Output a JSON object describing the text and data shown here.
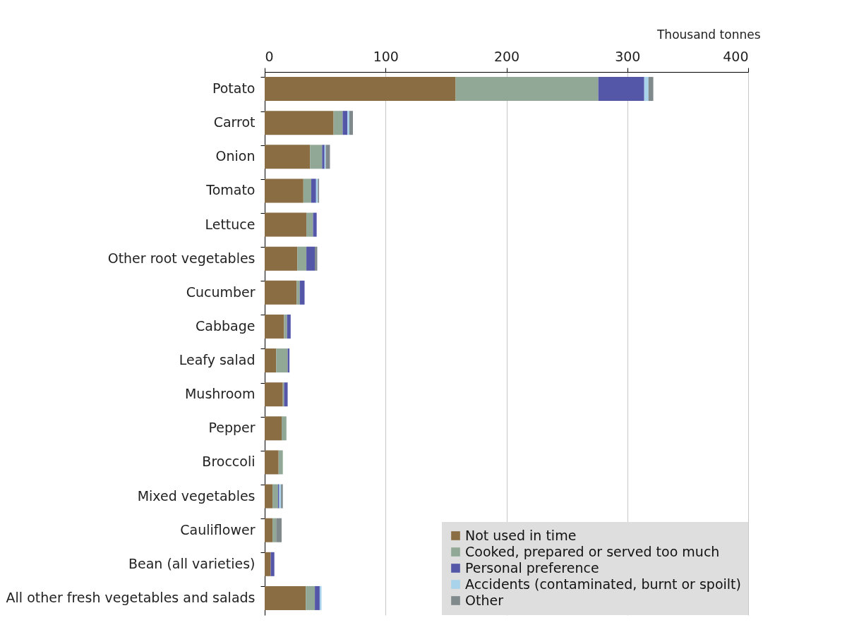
{
  "chart_data": {
    "type": "bar",
    "orientation": "horizontal",
    "stacked": true,
    "xlabel": "Thousand tonnes",
    "categories": [
      "Potato",
      "Carrot",
      "Onion",
      "Tomato",
      "Lettuce",
      "Other root vegetables",
      "Cucumber",
      "Cabbage",
      "Leafy salad",
      "Mushroom",
      "Pepper",
      "Broccoli",
      "Mixed vegetables",
      "Cauliflower",
      "Bean (all varieties)",
      "All other fresh vegetables and salads"
    ],
    "series": [
      {
        "name": "Not used in time",
        "color": "#8b6d44",
        "values": [
          158,
          57,
          37.5,
          32,
          34.5,
          27,
          26.5,
          16,
          9.5,
          15,
          14,
          11.5,
          6.5,
          6.5,
          5,
          34
        ]
      },
      {
        "name": "Cooked, prepared or served too much",
        "color": "#92a896",
        "values": [
          118,
          7.5,
          10,
          6.5,
          5.5,
          7.5,
          2.5,
          2.5,
          9.5,
          1,
          4,
          3.5,
          4.5,
          3,
          0,
          7.5
        ]
      },
      {
        "name": "Personal preference",
        "color": "#5457a8",
        "values": [
          38,
          4,
          2,
          4,
          3,
          7,
          4,
          3,
          1.5,
          3,
          0,
          0,
          1,
          0,
          3,
          4
        ]
      },
      {
        "name": "Accidents (contaminated, burnt or spoilt)",
        "color": "#a9d3ea",
        "values": [
          3.5,
          1.5,
          1,
          1.5,
          0,
          0,
          0,
          0,
          0,
          0,
          0,
          0,
          1.5,
          0,
          0,
          1.5
        ]
      },
      {
        "name": "Other",
        "color": "#808a8c",
        "values": [
          4,
          3,
          3.5,
          1,
          0,
          2,
          0,
          0,
          0,
          0,
          0,
          0,
          1.5,
          4.5,
          0,
          0
        ]
      }
    ],
    "xlim": [
      0,
      400
    ],
    "xticks": [
      0,
      100,
      200,
      300,
      400
    ],
    "grid": "x",
    "legend": "bottom right"
  }
}
